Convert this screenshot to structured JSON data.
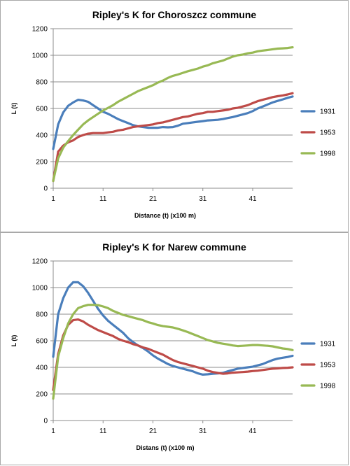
{
  "chart_data": [
    {
      "type": "line",
      "title": "Ripley's K for Choroszcz commune",
      "xlabel": "Distance  (t) (x100 m)",
      "ylabel": "L (t)",
      "xlim": [
        1,
        49
      ],
      "ylim": [
        0,
        1200
      ],
      "yticks": [
        "0",
        "200",
        "400",
        "600",
        "800",
        "1000",
        "1200"
      ],
      "xticks": [
        "1",
        "11",
        "21",
        "31",
        "41"
      ],
      "grid": "horizontal",
      "legend": "right",
      "series": [
        {
          "name": "1931",
          "color": "#4a7ebb",
          "x": [
            1,
            2,
            3,
            4,
            5,
            6,
            7,
            8,
            9,
            10,
            11,
            12,
            13,
            14,
            15,
            16,
            17,
            18,
            19,
            20,
            21,
            22,
            23,
            24,
            25,
            26,
            27,
            28,
            29,
            30,
            31,
            32,
            33,
            34,
            35,
            36,
            37,
            38,
            39,
            40,
            41,
            42,
            43,
            44,
            45,
            46,
            47,
            48,
            49
          ],
          "y": [
            295,
            480,
            570,
            620,
            645,
            665,
            660,
            650,
            625,
            600,
            575,
            560,
            540,
            520,
            505,
            490,
            475,
            465,
            460,
            455,
            455,
            455,
            460,
            458,
            460,
            470,
            485,
            490,
            495,
            500,
            505,
            510,
            512,
            515,
            520,
            528,
            535,
            545,
            555,
            565,
            580,
            600,
            615,
            630,
            645,
            657,
            668,
            680,
            690
          ]
        },
        {
          "name": "1953",
          "color": "#be4b48",
          "x": [
            1,
            2,
            3,
            4,
            5,
            6,
            7,
            8,
            9,
            10,
            11,
            12,
            13,
            14,
            15,
            16,
            17,
            18,
            19,
            20,
            21,
            22,
            23,
            24,
            25,
            26,
            27,
            28,
            29,
            30,
            31,
            32,
            33,
            34,
            35,
            36,
            37,
            38,
            39,
            40,
            41,
            42,
            43,
            44,
            45,
            46,
            47,
            48,
            49
          ],
          "y": [
            55,
            275,
            320,
            345,
            360,
            385,
            400,
            410,
            415,
            415,
            415,
            420,
            425,
            435,
            440,
            450,
            460,
            465,
            470,
            475,
            480,
            490,
            495,
            505,
            515,
            525,
            535,
            540,
            550,
            560,
            565,
            575,
            575,
            580,
            585,
            590,
            600,
            605,
            615,
            625,
            640,
            655,
            665,
            675,
            685,
            692,
            698,
            705,
            715
          ]
        },
        {
          "name": "1998",
          "color": "#98b954",
          "x": [
            1,
            2,
            3,
            4,
            5,
            6,
            7,
            8,
            9,
            10,
            11,
            12,
            13,
            14,
            15,
            16,
            17,
            18,
            19,
            20,
            21,
            22,
            23,
            24,
            25,
            26,
            27,
            28,
            29,
            30,
            31,
            32,
            33,
            34,
            35,
            36,
            37,
            38,
            39,
            40,
            41,
            42,
            43,
            44,
            45,
            46,
            47,
            48,
            49
          ],
          "y": [
            55,
            225,
            305,
            355,
            400,
            440,
            480,
            510,
            535,
            560,
            585,
            605,
            625,
            650,
            670,
            690,
            710,
            730,
            745,
            760,
            775,
            795,
            810,
            830,
            845,
            855,
            868,
            880,
            890,
            900,
            915,
            925,
            940,
            950,
            960,
            975,
            990,
            1000,
            1005,
            1015,
            1020,
            1030,
            1035,
            1040,
            1045,
            1050,
            1052,
            1055,
            1060
          ]
        }
      ]
    },
    {
      "type": "line",
      "title": "Ripley's K for Narew commune",
      "xlabel": "Distans (t) (x100 m)",
      "ylabel": "L (t)",
      "xlim": [
        1,
        49
      ],
      "ylim": [
        0,
        1200
      ],
      "yticks": [
        "0",
        "200",
        "400",
        "600",
        "800",
        "1000",
        "1200"
      ],
      "xticks": [
        "1",
        "11",
        "21",
        "31",
        "41"
      ],
      "grid": "horizontal",
      "legend": "right",
      "series": [
        {
          "name": "1931",
          "color": "#4a7ebb",
          "x": [
            1,
            2,
            3,
            4,
            5,
            6,
            7,
            8,
            9,
            10,
            11,
            12,
            13,
            14,
            15,
            16,
            17,
            18,
            19,
            20,
            21,
            22,
            23,
            24,
            25,
            26,
            27,
            28,
            29,
            30,
            31,
            32,
            33,
            34,
            35,
            36,
            37,
            38,
            39,
            40,
            41,
            42,
            43,
            44,
            45,
            46,
            47,
            48,
            49
          ],
          "y": [
            480,
            800,
            920,
            1000,
            1040,
            1040,
            1010,
            960,
            900,
            840,
            790,
            750,
            720,
            690,
            660,
            620,
            590,
            565,
            545,
            520,
            490,
            465,
            445,
            425,
            410,
            400,
            390,
            380,
            370,
            355,
            345,
            348,
            352,
            355,
            358,
            370,
            380,
            390,
            395,
            400,
            405,
            415,
            425,
            440,
            455,
            465,
            472,
            478,
            487
          ]
        },
        {
          "name": "1953",
          "color": "#be4b48",
          "x": [
            1,
            2,
            3,
            4,
            5,
            6,
            7,
            8,
            9,
            10,
            11,
            12,
            13,
            14,
            15,
            16,
            17,
            18,
            19,
            20,
            21,
            22,
            23,
            24,
            25,
            26,
            27,
            28,
            29,
            30,
            31,
            32,
            33,
            34,
            35,
            36,
            37,
            38,
            39,
            40,
            41,
            42,
            43,
            44,
            45,
            46,
            47,
            48,
            49
          ],
          "y": [
            230,
            500,
            640,
            720,
            755,
            760,
            745,
            720,
            700,
            680,
            665,
            650,
            635,
            615,
            600,
            590,
            575,
            565,
            550,
            540,
            525,
            510,
            495,
            475,
            455,
            440,
            430,
            420,
            410,
            400,
            390,
            375,
            365,
            358,
            352,
            355,
            360,
            362,
            365,
            368,
            372,
            375,
            380,
            385,
            390,
            392,
            395,
            397,
            400
          ]
        },
        {
          "name": "1998",
          "color": "#98b954",
          "x": [
            1,
            2,
            3,
            4,
            5,
            6,
            7,
            8,
            9,
            10,
            11,
            12,
            13,
            14,
            15,
            16,
            17,
            18,
            19,
            20,
            21,
            22,
            23,
            24,
            25,
            26,
            27,
            28,
            29,
            30,
            31,
            32,
            33,
            34,
            35,
            36,
            37,
            38,
            39,
            40,
            41,
            42,
            43,
            44,
            45,
            46,
            47,
            48,
            49
          ],
          "y": [
            165,
            480,
            620,
            730,
            800,
            845,
            860,
            870,
            870,
            868,
            858,
            845,
            825,
            810,
            795,
            785,
            775,
            765,
            755,
            740,
            730,
            718,
            710,
            705,
            700,
            690,
            678,
            665,
            650,
            635,
            620,
            605,
            595,
            585,
            578,
            572,
            565,
            560,
            562,
            565,
            568,
            568,
            565,
            562,
            558,
            550,
            542,
            538,
            530
          ]
        }
      ]
    }
  ]
}
